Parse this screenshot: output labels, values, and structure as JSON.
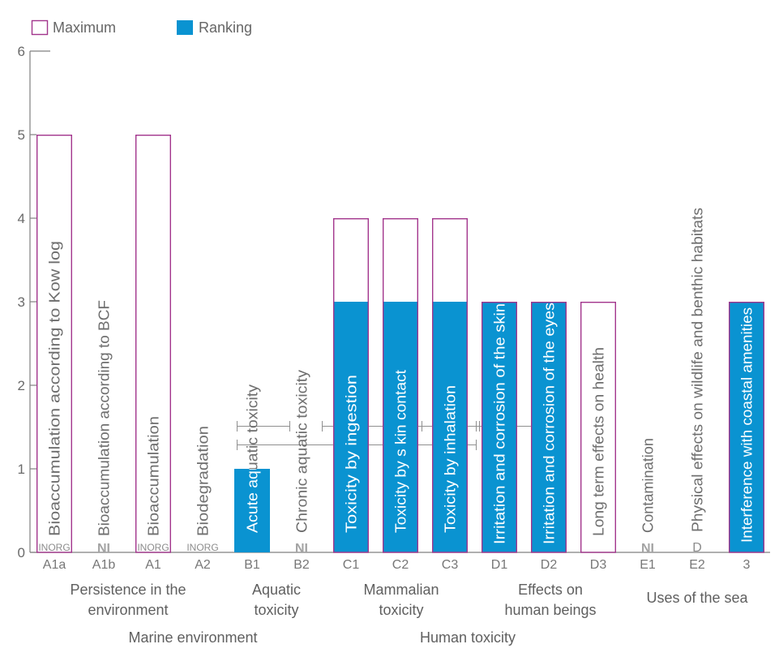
{
  "colors": {
    "maximum": "#a2358c",
    "ranking": "#0a93d1",
    "axis": "#808080",
    "guide": "#8f8f8f",
    "label_on_bar": "#ffffff",
    "label_off_bar": "#6e6e6e"
  },
  "chart_data": {
    "type": "bar",
    "ylim": [
      0,
      6
    ],
    "yticks": [
      0,
      1,
      2,
      3,
      4,
      5,
      6
    ],
    "grid": false,
    "legend_position": "top-left",
    "categories": [
      "A1a",
      "A1b",
      "A1",
      "A2",
      "B1",
      "B2",
      "C1",
      "C2",
      "C3",
      "D1",
      "D2",
      "D3",
      "E1",
      "E2",
      "3"
    ],
    "bar_labels": [
      "Bioaccumulation according to Kow log",
      "Bioaccumulation according to BCF",
      "Bioaccumulation",
      "Biodegradation",
      "Acute aquatic toxicity",
      "Chronic aquatic toxicity",
      "Toxicity by ingestion",
      "Toxicity by s kin contact",
      "Toxicity by inhalation",
      "Irritation and corrosion of the skin",
      "Irritation and corrosion of the eyes",
      "Long term effects on health",
      "Contamination",
      "Physical effects on wildlife and benthic habitats",
      "Interference with coastal amenities"
    ],
    "base_notes": [
      "INORG",
      "NI",
      "INORG",
      "INORG",
      null,
      "NI",
      null,
      null,
      null,
      null,
      null,
      null,
      "NI",
      "D",
      null
    ],
    "series": [
      {
        "name": "Maximum",
        "values": [
          5,
          null,
          5,
          null,
          null,
          null,
          4,
          4,
          4,
          3,
          3,
          3,
          null,
          null,
          3
        ]
      },
      {
        "name": "Ranking",
        "values": [
          null,
          null,
          null,
          null,
          1,
          null,
          3,
          3,
          3,
          3,
          3,
          null,
          null,
          null,
          3
        ]
      }
    ],
    "groups": [
      {
        "lines": [
          "Persistence in the",
          "environment"
        ]
      },
      {
        "lines": [
          "Aquatic",
          "toxicity"
        ]
      },
      {
        "lines": [
          "Mammalian",
          "toxicity"
        ]
      },
      {
        "lines": [
          "Effects on",
          "human beings"
        ]
      },
      {
        "lines": [
          "Uses of the sea"
        ]
      }
    ],
    "supergroups": [
      "Marine environment",
      "Human toxicity"
    ]
  }
}
